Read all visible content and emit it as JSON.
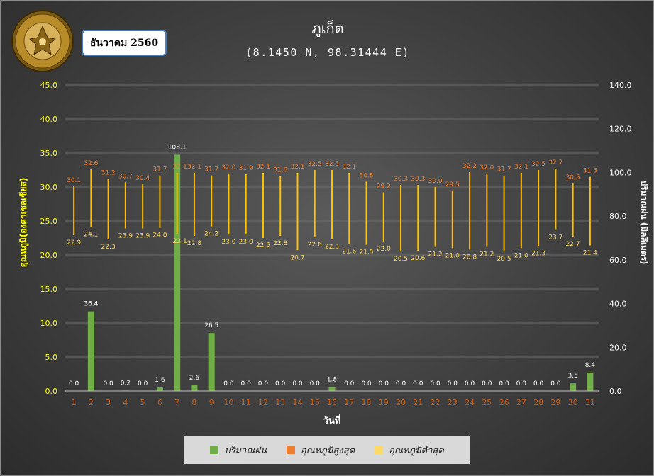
{
  "station_title": "ภูเก็ต",
  "coordinates": "(8.1450 N, 98.31444 E)",
  "month_label": "ธันวาคม 2560",
  "logo": {
    "icon": "meteorological-department-seal-icon",
    "text": "กรมอุตุนิยมวิทยา METEOROLOGICAL DEPARTMENT"
  },
  "colors": {
    "rain": "#70ad47",
    "tmax_label": "#ed7d31",
    "tmin_label": "#ffd966",
    "range_bar": "#ffc000",
    "axis_text": "#ffff00",
    "tick_red": "#c55a11"
  },
  "chart_data": {
    "type": "bar",
    "title": "ภูเก็ต",
    "subtitle": "(8.1450 N, 98.31444 E)",
    "xlabel": "วันที่",
    "ylabel": "อุณหภูมิ(องศาเซลเซียส)",
    "y2label": "ปริมาณฝน (มิลลิเมตร)",
    "ylim": [
      0,
      45
    ],
    "y2lim": [
      0,
      140
    ],
    "yticks": [
      "0.0",
      "5.0",
      "10.0",
      "15.0",
      "20.0",
      "25.0",
      "30.0",
      "35.0",
      "40.0",
      "45.0"
    ],
    "y2ticks": [
      "0.0",
      "20.0",
      "40.0",
      "60.0",
      "80.0",
      "100.0",
      "120.0",
      "140.0"
    ],
    "categories": [
      "1",
      "2",
      "3",
      "4",
      "5",
      "6",
      "7",
      "8",
      "9",
      "10",
      "11",
      "12",
      "13",
      "14",
      "15",
      "16",
      "17",
      "18",
      "19",
      "20",
      "21",
      "22",
      "23",
      "24",
      "25",
      "26",
      "27",
      "28",
      "29",
      "30",
      "31"
    ],
    "grid": true,
    "legend_position": "bottom",
    "series": [
      {
        "name": "ปริมาณฝน",
        "type": "bar",
        "axis": "right",
        "values": [
          0.0,
          36.4,
          0.0,
          0.2,
          0.0,
          1.6,
          108.1,
          2.6,
          26.5,
          0.0,
          0.0,
          0.0,
          0.0,
          0.0,
          0.0,
          1.8,
          0.0,
          0.0,
          0.0,
          0.0,
          0.0,
          0.0,
          0.0,
          0.0,
          0.0,
          0.0,
          0.0,
          0.0,
          0.0,
          3.5,
          8.4
        ]
      },
      {
        "name": "อุณหภูมิสูงสุด",
        "type": "range-top",
        "axis": "left",
        "values": [
          30.1,
          32.6,
          31.2,
          30.7,
          30.4,
          31.7,
          32.1,
          32.1,
          31.7,
          32.0,
          31.9,
          32.1,
          31.6,
          32.1,
          32.5,
          32.5,
          32.1,
          30.8,
          29.2,
          30.3,
          30.3,
          30.0,
          29.5,
          32.2,
          32.0,
          31.7,
          32.1,
          32.5,
          32.7,
          30.5,
          31.5
        ]
      },
      {
        "name": "อุณหภูมิต่ำสุด",
        "type": "range-bottom",
        "axis": "left",
        "values": [
          22.9,
          24.1,
          22.3,
          23.9,
          23.9,
          24.0,
          23.1,
          22.8,
          24.2,
          23.0,
          23.0,
          22.5,
          22.8,
          20.7,
          22.6,
          22.3,
          21.6,
          21.5,
          22.0,
          20.5,
          20.6,
          21.2,
          21.0,
          20.8,
          21.2,
          20.5,
          21.0,
          21.3,
          23.7,
          22.7,
          21.4
        ]
      }
    ]
  }
}
